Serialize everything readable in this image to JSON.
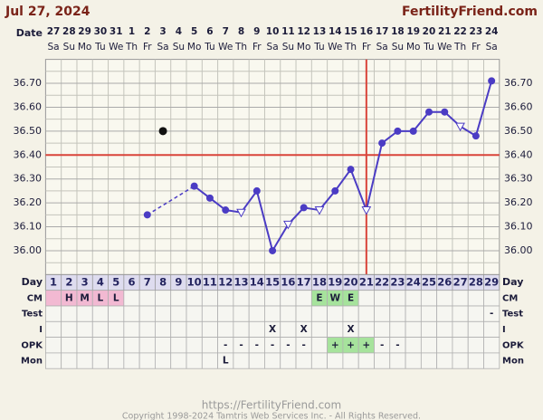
{
  "header": {
    "date": "Jul 27, 2024",
    "site": "FertilityFriend.com"
  },
  "chart_data": {
    "type": "line",
    "date_label": "Date",
    "dates": [
      27,
      28,
      29,
      30,
      31,
      1,
      2,
      3,
      4,
      5,
      6,
      7,
      8,
      9,
      10,
      11,
      12,
      13,
      14,
      15,
      16,
      17,
      18,
      19,
      20,
      21,
      22,
      23,
      24
    ],
    "weekdays": [
      "Sa",
      "Su",
      "Mo",
      "Tu",
      "We",
      "Th",
      "Fr",
      "Sa",
      "Su",
      "Mo",
      "Tu",
      "We",
      "Th",
      "Fr",
      "Sa",
      "Su",
      "Mo",
      "Tu",
      "We",
      "Th",
      "Fr",
      "Sa",
      "Su",
      "Mo",
      "Tu",
      "We",
      "Th",
      "Fr",
      "Sa"
    ],
    "day_label": "Day",
    "categories": [
      1,
      2,
      3,
      4,
      5,
      6,
      7,
      8,
      9,
      10,
      11,
      12,
      13,
      14,
      15,
      16,
      17,
      18,
      19,
      20,
      21,
      22,
      23,
      24,
      25,
      26,
      27,
      28,
      29
    ],
    "values": [
      null,
      null,
      null,
      null,
      null,
      null,
      36.15,
      null,
      null,
      36.27,
      36.22,
      36.17,
      36.16,
      36.25,
      36.0,
      36.11,
      36.18,
      36.17,
      36.25,
      36.34,
      36.17,
      36.45,
      36.5,
      36.5,
      36.58,
      36.58,
      36.52,
      36.48,
      36.71
    ],
    "markers": [
      null,
      null,
      null,
      null,
      null,
      null,
      "dot",
      null,
      null,
      "dot",
      "dot",
      "dot",
      "triangle",
      "dot",
      "dot",
      "triangle",
      "dot",
      "triangle",
      "dot",
      "dot",
      "triangle",
      "dot",
      "dot",
      "dot",
      "dot",
      "dot",
      "triangle",
      "dot",
      "dot"
    ],
    "discarded_values": [
      null,
      null,
      null,
      null,
      null,
      null,
      null,
      36.5,
      null,
      null,
      null,
      null,
      null,
      null,
      null,
      null,
      null,
      null,
      null,
      null,
      null,
      null,
      null,
      null,
      null,
      null,
      null,
      null,
      null
    ],
    "color": "#4b3cc4",
    "discarded_color": "#111111",
    "ylim": [
      35.9,
      36.8
    ],
    "yticks": [
      {
        "value": 36.0,
        "label": "36.00"
      },
      {
        "value": 36.1,
        "label": "36.10"
      },
      {
        "value": 36.2,
        "label": "36.20"
      },
      {
        "value": 36.3,
        "label": "36.30"
      },
      {
        "value": 36.4,
        "label": "36.40"
      },
      {
        "value": 36.5,
        "label": "36.50"
      },
      {
        "value": 36.6,
        "label": "36.60"
      },
      {
        "value": 36.7,
        "label": "36.70"
      }
    ],
    "minor_yticks": [
      35.95,
      36.05,
      36.15,
      36.25,
      36.35,
      36.45,
      36.55,
      36.65,
      36.75
    ],
    "grid": true,
    "coverline": 36.4,
    "ovulation_day": 21,
    "reference_color": "#d9443a",
    "rows": [
      {
        "label": "CM",
        "cells": [
          null,
          "H",
          "M",
          "L",
          "L",
          null,
          null,
          null,
          null,
          null,
          null,
          null,
          null,
          null,
          null,
          null,
          null,
          "E",
          "W",
          "E",
          null,
          null,
          null,
          null,
          null,
          null,
          null,
          null,
          null
        ],
        "colors": [
          "#f2b9d2",
          "#f2b9d2",
          "#f2b9d2",
          "#f2b9d2",
          "#f2b9d2",
          null,
          null,
          null,
          null,
          null,
          null,
          null,
          null,
          null,
          null,
          null,
          null,
          "#a6e39c",
          "#a6e39c",
          "#a6e39c",
          null,
          null,
          null,
          null,
          null,
          null,
          null,
          null,
          null
        ]
      },
      {
        "label": "Test",
        "cells": [
          null,
          null,
          null,
          null,
          null,
          null,
          null,
          null,
          null,
          null,
          null,
          null,
          null,
          null,
          null,
          null,
          null,
          null,
          null,
          null,
          null,
          null,
          null,
          null,
          null,
          null,
          null,
          null,
          "-"
        ],
        "colors": [
          null,
          null,
          null,
          null,
          null,
          null,
          null,
          null,
          null,
          null,
          null,
          null,
          null,
          null,
          null,
          null,
          null,
          null,
          null,
          null,
          null,
          null,
          null,
          null,
          null,
          null,
          null,
          null,
          null
        ]
      },
      {
        "label": "I",
        "cells": [
          null,
          null,
          null,
          null,
          null,
          null,
          null,
          null,
          null,
          null,
          null,
          null,
          null,
          null,
          "X",
          null,
          "X",
          null,
          null,
          "X",
          null,
          null,
          null,
          null,
          null,
          null,
          null,
          null,
          null
        ],
        "colors": [
          null,
          null,
          null,
          null,
          null,
          null,
          null,
          null,
          null,
          null,
          null,
          null,
          null,
          null,
          null,
          null,
          null,
          null,
          null,
          null,
          null,
          null,
          null,
          null,
          null,
          null,
          null,
          null,
          null
        ]
      },
      {
        "label": "OPK",
        "cells": [
          null,
          null,
          null,
          null,
          null,
          null,
          null,
          null,
          null,
          null,
          null,
          "-",
          "-",
          "-",
          "-",
          "-",
          "-",
          null,
          "+",
          "+",
          "+",
          "-",
          "-",
          null,
          null,
          null,
          null,
          null,
          null
        ],
        "colors": [
          null,
          null,
          null,
          null,
          null,
          null,
          null,
          null,
          null,
          null,
          null,
          null,
          null,
          null,
          null,
          null,
          null,
          null,
          "#a6e39c",
          "#a6e39c",
          "#a6e39c",
          null,
          null,
          null,
          null,
          null,
          null,
          null,
          null
        ]
      },
      {
        "label": "Mon",
        "cells": [
          null,
          null,
          null,
          null,
          null,
          null,
          null,
          null,
          null,
          null,
          null,
          "L",
          null,
          null,
          null,
          null,
          null,
          null,
          null,
          null,
          null,
          null,
          null,
          null,
          null,
          null,
          null,
          null,
          null
        ],
        "colors": [
          null,
          null,
          null,
          null,
          null,
          null,
          null,
          null,
          null,
          null,
          null,
          null,
          null,
          null,
          null,
          null,
          null,
          null,
          null,
          null,
          null,
          null,
          null,
          null,
          null,
          null,
          null,
          null,
          null
        ]
      }
    ]
  },
  "footer": {
    "url": "https://FertilityFriend.com",
    "copyright": "Copyright 1998-2024 Tamtris Web Services Inc. - All Rights Reserved."
  }
}
